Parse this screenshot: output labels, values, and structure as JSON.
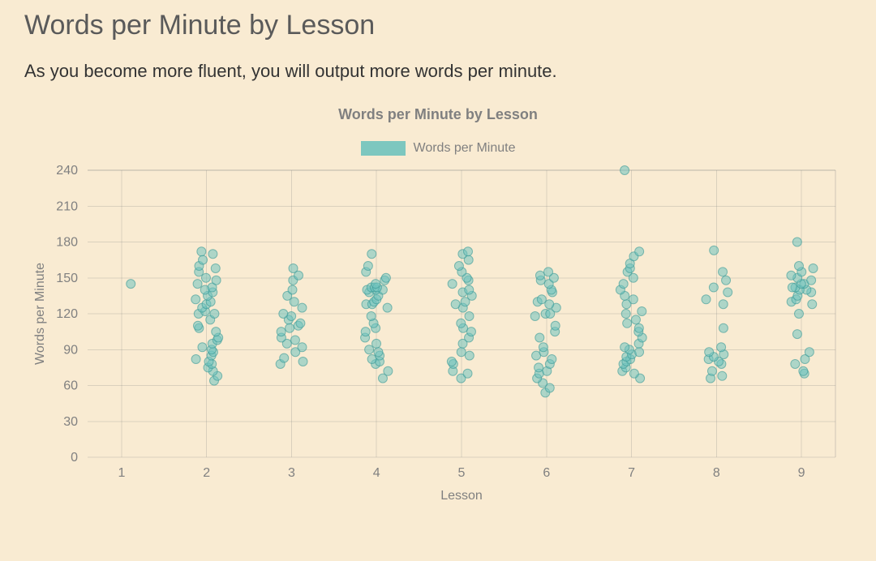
{
  "page": {
    "title": "Words per Minute by Lesson",
    "subtitle": "As you become more fluent, you will output more words per minute."
  },
  "chart": {
    "type": "scatter",
    "title": "Words per Minute by Lesson",
    "legend_label": "Words per Minute",
    "xlabel": "Lesson",
    "ylabel": "Words per Minute",
    "background_color": "#f9ebd2",
    "grid_color": "#808080",
    "grid_opacity": 0.25,
    "text_color": "#808080",
    "title_fontsize": 18,
    "label_fontsize": 16,
    "tick_fontsize": 16,
    "x_ticks": [
      1,
      2,
      3,
      4,
      5,
      6,
      7,
      8,
      9
    ],
    "y_ticks": [
      0,
      30,
      60,
      90,
      120,
      150,
      180,
      210,
      240
    ],
    "xlim": [
      0.6,
      9.4
    ],
    "ylim": [
      0,
      240
    ],
    "marker": {
      "radius": 5.5,
      "fill": "#6fc3bd",
      "fill_opacity": 0.55,
      "stroke": "#3a9a96",
      "stroke_opacity": 0.6,
      "stroke_width": 1
    },
    "jitter_width": 0.14,
    "series": [
      {
        "lesson": 1,
        "values": [
          145
        ]
      },
      {
        "lesson": 2,
        "values": [
          64,
          68,
          72,
          75,
          78,
          80,
          82,
          85,
          88,
          90,
          92,
          95,
          98,
          100,
          105,
          108,
          110,
          115,
          120,
          120,
          122,
          125,
          128,
          130,
          132,
          135,
          138,
          140,
          142,
          145,
          148,
          150,
          155,
          158,
          160,
          165,
          170,
          172
        ]
      },
      {
        "lesson": 3,
        "values": [
          78,
          80,
          83,
          88,
          92,
          95,
          98,
          100,
          105,
          108,
          110,
          112,
          115,
          118,
          120,
          125,
          130,
          135,
          140,
          148,
          152,
          158
        ]
      },
      {
        "lesson": 4,
        "values": [
          66,
          72,
          78,
          80,
          82,
          85,
          88,
          90,
          95,
          100,
          105,
          108,
          112,
          118,
          125,
          128,
          128,
          130,
          132,
          135,
          138,
          140,
          140,
          140,
          142,
          142,
          142,
          145,
          148,
          150,
          155,
          160,
          170
        ]
      },
      {
        "lesson": 5,
        "values": [
          66,
          70,
          72,
          78,
          80,
          85,
          88,
          95,
          100,
          105,
          108,
          112,
          118,
          125,
          128,
          130,
          135,
          138,
          140,
          145,
          148,
          150,
          155,
          160,
          165,
          170,
          172
        ]
      },
      {
        "lesson": 6,
        "values": [
          54,
          58,
          62,
          66,
          70,
          72,
          75,
          78,
          82,
          85,
          88,
          92,
          100,
          105,
          110,
          118,
          120,
          120,
          125,
          128,
          130,
          132,
          138,
          140,
          145,
          148,
          150,
          152,
          155
        ]
      },
      {
        "lesson": 7,
        "values": [
          66,
          70,
          72,
          75,
          78,
          80,
          82,
          84,
          86,
          88,
          90,
          92,
          95,
          100,
          105,
          108,
          112,
          115,
          120,
          122,
          128,
          132,
          135,
          140,
          145,
          150,
          155,
          158,
          162,
          168,
          172,
          240
        ]
      },
      {
        "lesson": 8,
        "values": [
          66,
          68,
          72,
          78,
          80,
          82,
          84,
          86,
          88,
          92,
          108,
          128,
          132,
          138,
          142,
          148,
          155,
          173
        ]
      },
      {
        "lesson": 9,
        "values": [
          70,
          72,
          78,
          82,
          88,
          103,
          120,
          128,
          130,
          132,
          135,
          138,
          140,
          140,
          142,
          142,
          145,
          145,
          148,
          150,
          152,
          155,
          158,
          160,
          180
        ]
      }
    ]
  }
}
